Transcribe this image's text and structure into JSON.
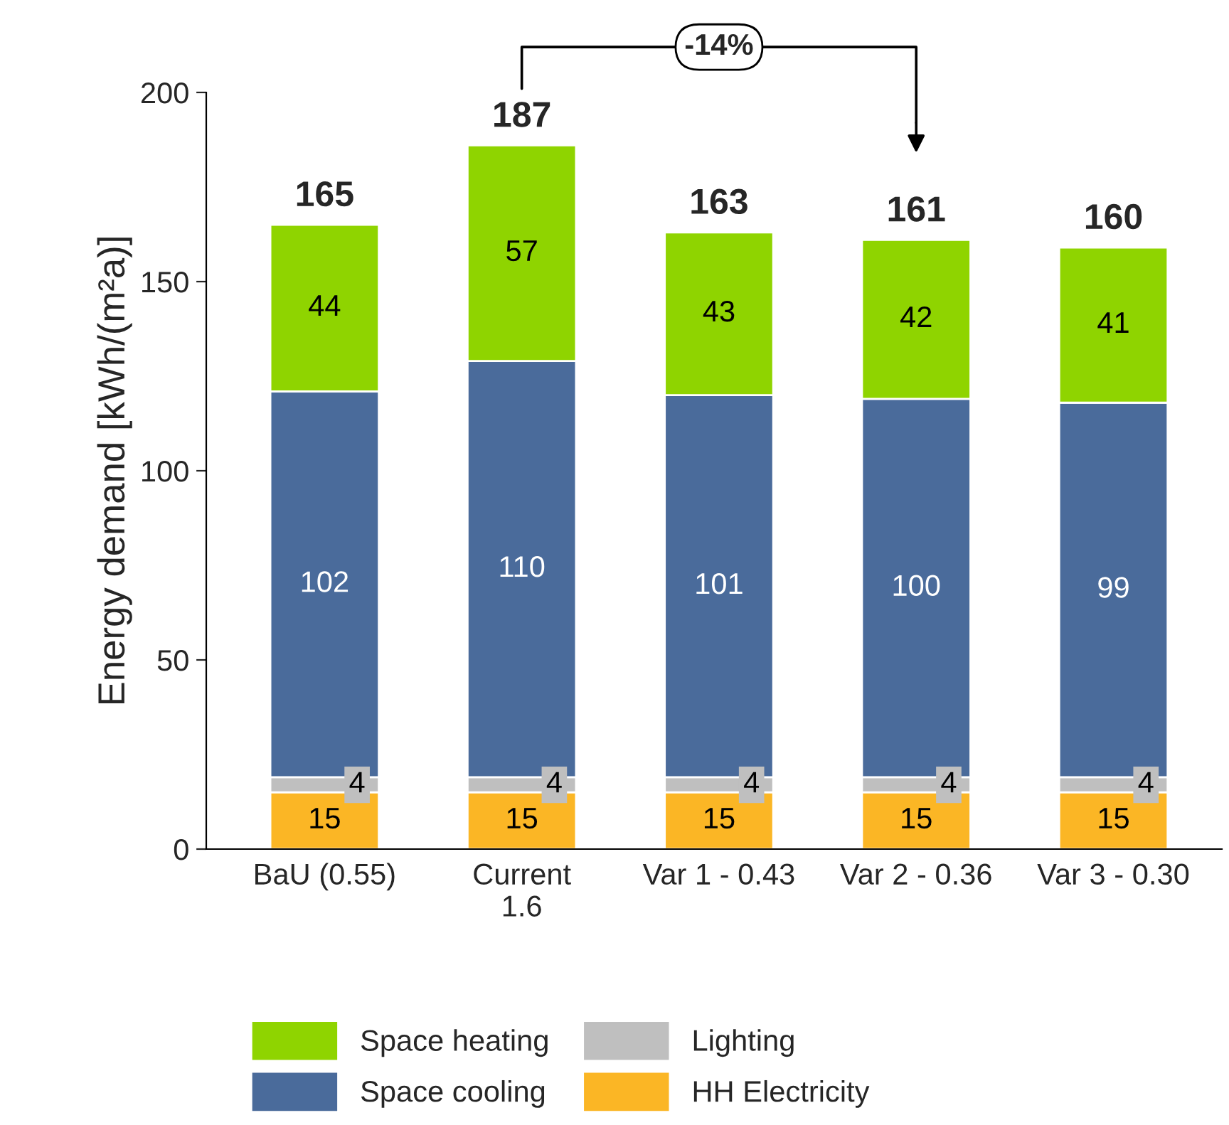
{
  "chart_data": {
    "type": "bar",
    "stacked": true,
    "ylabel": "Energy demand [kWh/(m²a)]",
    "categories": [
      "BaU (0.55)",
      "Current\n1.6",
      "Var 1 - 0.43",
      "Var 2 - 0.36",
      "Var 3 - 0.30"
    ],
    "series": [
      {
        "name": "HH Electricity",
        "color": "#fbb625",
        "values": [
          15,
          15,
          15,
          15,
          15
        ]
      },
      {
        "name": "Lighting",
        "color": "#bfbfbf",
        "values": [
          4,
          4,
          4,
          4,
          4
        ]
      },
      {
        "name": "Space cooling",
        "color": "#4a6b9b",
        "values": [
          102,
          110,
          101,
          100,
          99
        ]
      },
      {
        "name": "Space heating",
        "color": "#8fd400",
        "values": [
          44,
          57,
          43,
          42,
          41
        ]
      }
    ],
    "totals": [
      "165",
      "187",
      "163",
      "161",
      "160"
    ],
    "data_labels": true,
    "ylim": [
      0,
      200
    ],
    "yticks": [
      0,
      50,
      100,
      150,
      200
    ],
    "grid": false,
    "legend": "bottom",
    "annotations": [
      "-14%"
    ]
  }
}
